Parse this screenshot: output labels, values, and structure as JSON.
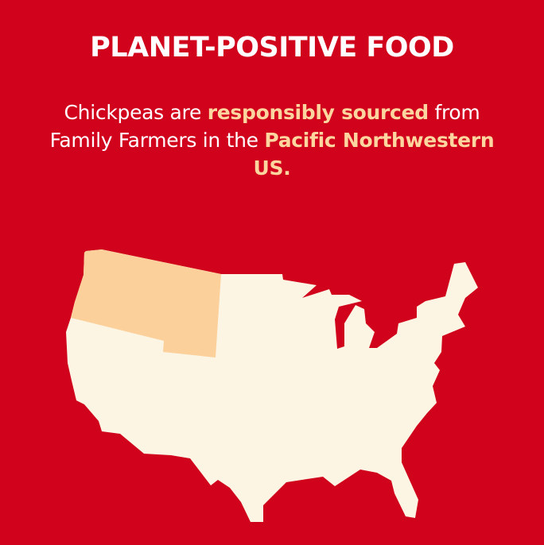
{
  "title": "PLANET-POSITIVE FOOD",
  "body": {
    "part1": "Chickpeas are ",
    "highlight1": "responsibly sourced",
    "part2": " from Family Farmers in the ",
    "highlight2": "Pacific Northwestern US."
  },
  "map": {
    "region": "Pacific Northwestern US",
    "colors": {
      "background": "#d0021c",
      "land": "#fdf5e4",
      "highlighted_region": "#fbd09b",
      "highlight_text": "#fcd59f"
    }
  }
}
